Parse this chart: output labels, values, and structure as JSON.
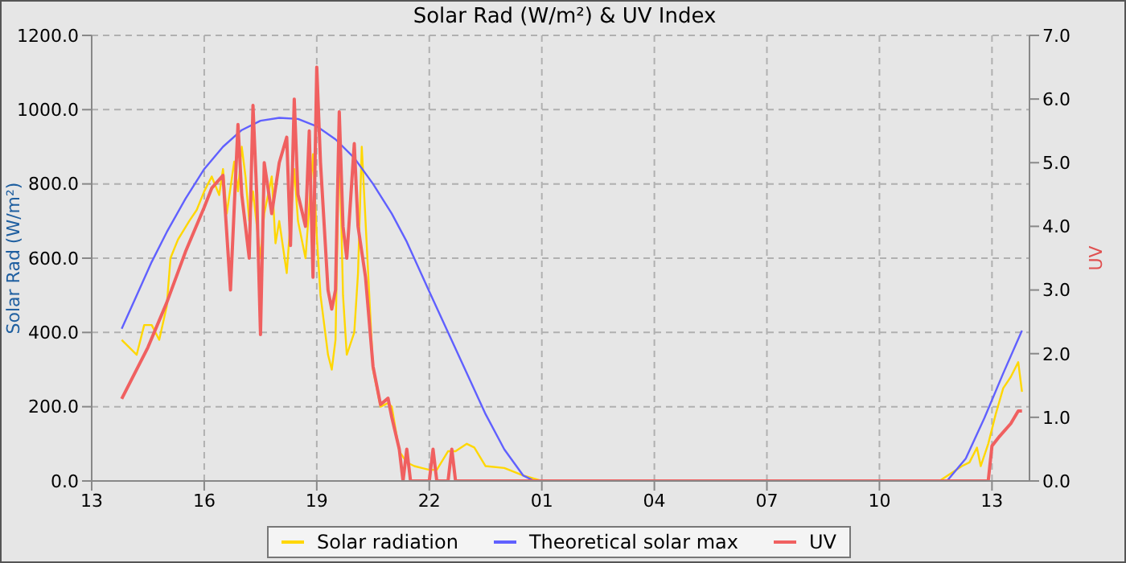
{
  "chart_data": {
    "type": "line",
    "title": "Solar Rad (W/m²) &  UV Index",
    "ylabel": "Solar Rad (W/m²)",
    "y2label": "UV",
    "xlim": [
      "--01-01T13:00",
      "--01-02T14:00"
    ],
    "xticks": [
      {
        "value": "--01-01T13:00",
        "label": "13"
      },
      {
        "value": "--01-01T16:00",
        "label": "16"
      },
      {
        "value": "--01-01T19:00",
        "label": "19"
      },
      {
        "value": "--01-01T22:00",
        "label": "22"
      },
      {
        "value": "--01-02T01:00",
        "label": "01"
      },
      {
        "value": "--01-02T04:00",
        "label": "04"
      },
      {
        "value": "--01-02T07:00",
        "label": "07"
      },
      {
        "value": "--01-02T10:00",
        "label": "10"
      },
      {
        "value": "--01-02T13:00",
        "label": "13"
      }
    ],
    "ylim": [
      0,
      1200
    ],
    "yticks": [
      {
        "value": 0,
        "label": "0.0"
      },
      {
        "value": 200,
        "label": "200.0"
      },
      {
        "value": 400,
        "label": "400.0"
      },
      {
        "value": 600,
        "label": "600.0"
      },
      {
        "value": 800,
        "label": "800.0"
      },
      {
        "value": 1000,
        "label": "1000.0"
      },
      {
        "value": 1200,
        "label": "1200.0"
      }
    ],
    "y2lim": [
      0,
      7
    ],
    "y2ticks": [
      {
        "value": 0,
        "label": "0.0"
      },
      {
        "value": 1,
        "label": "1.0"
      },
      {
        "value": 2,
        "label": "2.0"
      },
      {
        "value": 3,
        "label": "3.0"
      },
      {
        "value": 4,
        "label": "4.0"
      },
      {
        "value": 5,
        "label": "5.0"
      },
      {
        "value": 6,
        "label": "6.0"
      },
      {
        "value": 7,
        "label": "7.0"
      }
    ],
    "grid": true,
    "legend": "bottom",
    "series": [
      {
        "name": "Solar radiation",
        "color": "#ffd700",
        "x": [
          "--01-01T13:48",
          "--01-01T14:00",
          "--01-01T14:12",
          "--01-01T14:24",
          "--01-01T14:36",
          "--01-01T14:48",
          "--01-01T15:00",
          "--01-01T15:06",
          "--01-01T15:18",
          "--01-01T15:36",
          "--01-01T15:48",
          "--01-01T16:00",
          "--01-01T16:12",
          "--01-01T16:24",
          "--01-01T16:30",
          "--01-01T16:36",
          "--01-01T16:48",
          "--01-01T16:54",
          "--01-01T17:00",
          "--01-01T17:06",
          "--01-01T17:12",
          "--01-01T17:18",
          "--01-01T17:30",
          "--01-01T17:36",
          "--01-01T17:48",
          "--01-01T17:54",
          "--01-01T18:00",
          "--01-01T18:12",
          "--01-01T18:24",
          "--01-01T18:30",
          "--01-01T18:42",
          "--01-01T18:54",
          "--01-01T19:00",
          "--01-01T19:06",
          "--01-01T19:18",
          "--01-01T19:24",
          "--01-01T19:30",
          "--01-01T19:36",
          "--01-01T19:42",
          "--01-01T19:48",
          "--01-01T20:00",
          "--01-01T20:06",
          "--01-01T20:12",
          "--01-01T20:18",
          "--01-01T20:30",
          "--01-01T20:42",
          "--01-01T20:54",
          "--01-01T21:00",
          "--01-01T21:12",
          "--01-01T21:24",
          "--01-01T21:36",
          "--01-01T21:48",
          "--01-01T22:00",
          "--01-01T22:12",
          "--01-01T22:30",
          "--01-01T22:42",
          "--01-01T23:00",
          "--01-01T23:12",
          "--01-01T23:30",
          "--01-02T00:00",
          "--01-02T00:30",
          "--01-02T01:00",
          "--01-02T11:36",
          "--01-02T11:54",
          "--01-02T12:12",
          "--01-02T12:24",
          "--01-02T12:36",
          "--01-02T12:42",
          "--01-02T12:54",
          "--01-02T13:06",
          "--01-02T13:18",
          "--01-02T13:30",
          "--01-02T13:42",
          "--01-02T13:48"
        ],
        "values": [
          380,
          360,
          340,
          420,
          420,
          380,
          470,
          600,
          650,
          700,
          730,
          780,
          820,
          770,
          840,
          720,
          860,
          780,
          900,
          820,
          700,
          780,
          600,
          720,
          820,
          640,
          700,
          560,
          840,
          700,
          600,
          880,
          660,
          500,
          340,
          300,
          380,
          930,
          500,
          340,
          400,
          560,
          900,
          700,
          300,
          200,
          210,
          200,
          80,
          50,
          40,
          35,
          30,
          30,
          80,
          80,
          100,
          90,
          40,
          35,
          15,
          0,
          0,
          20,
          40,
          50,
          90,
          40,
          100,
          180,
          250,
          280,
          320,
          240
        ]
      },
      {
        "name": "Theoretical solar max",
        "color": "#6060ff",
        "x": [
          "--01-01T13:48",
          "--01-01T14:12",
          "--01-01T14:36",
          "--01-01T15:00",
          "--01-01T15:30",
          "--01-01T16:00",
          "--01-01T16:30",
          "--01-01T17:00",
          "--01-01T17:30",
          "--01-01T18:00",
          "--01-01T18:30",
          "--01-01T19:00",
          "--01-01T19:30",
          "--01-01T20:00",
          "--01-01T20:30",
          "--01-01T21:00",
          "--01-01T21:24",
          "--01-01T22:00",
          "--01-01T22:30",
          "--01-01T23:00",
          "--01-01T23:30",
          "--01-02T00:00",
          "--01-02T00:30",
          "--01-02T00:48",
          "--01-02T11:48",
          "--01-02T12:18",
          "--01-02T12:48",
          "--01-02T13:18",
          "--01-02T13:48"
        ],
        "values": [
          410,
          500,
          590,
          670,
          760,
          840,
          900,
          945,
          970,
          978,
          975,
          955,
          920,
          870,
          800,
          720,
          644,
          510,
          400,
          290,
          180,
          85,
          15,
          0,
          0,
          60,
          170,
          290,
          405
        ]
      },
      {
        "name": "UV",
        "color": "#f06060",
        "axis": "y2",
        "x": [
          "--01-01T13:48",
          "--01-01T14:30",
          "--01-01T15:00",
          "--01-01T15:30",
          "--01-01T16:00",
          "--01-01T16:12",
          "--01-01T16:30",
          "--01-01T16:42",
          "--01-01T16:54",
          "--01-01T17:00",
          "--01-01T17:12",
          "--01-01T17:18",
          "--01-01T17:24",
          "--01-01T17:30",
          "--01-01T17:36",
          "--01-01T17:48",
          "--01-01T18:00",
          "--01-01T18:12",
          "--01-01T18:18",
          "--01-01T18:24",
          "--01-01T18:30",
          "--01-01T18:42",
          "--01-01T18:48",
          "--01-01T18:54",
          "--01-01T19:00",
          "--01-01T19:06",
          "--01-01T19:18",
          "--01-01T19:24",
          "--01-01T19:30",
          "--01-01T19:36",
          "--01-01T19:42",
          "--01-01T19:48",
          "--01-01T20:00",
          "--01-01T20:06",
          "--01-01T20:18",
          "--01-01T20:30",
          "--01-01T20:42",
          "--01-01T20:54",
          "--01-01T21:00",
          "--01-01T21:12",
          "--01-01T21:18",
          "--01-01T21:24",
          "--01-01T21:30",
          "--01-01T22:00",
          "--01-01T22:06",
          "--01-01T22:12",
          "--01-01T22:30",
          "--01-01T22:36",
          "--01-01T22:42",
          "--01-02T12:54",
          "--01-02T13:00",
          "--01-02T13:12",
          "--01-02T13:30",
          "--01-02T13:42",
          "--01-02T13:48"
        ],
        "values": [
          1.29,
          2.1,
          2.8,
          3.6,
          4.3,
          4.6,
          4.8,
          3.0,
          5.6,
          4.5,
          3.5,
          5.9,
          4.5,
          2.3,
          5.0,
          4.2,
          5.0,
          5.4,
          3.7,
          6.0,
          4.5,
          4.0,
          5.5,
          3.2,
          6.5,
          5.0,
          3.0,
          2.7,
          3.0,
          5.8,
          4.0,
          3.5,
          5.3,
          4.0,
          3.2,
          1.8,
          1.2,
          1.3,
          1.0,
          0.5,
          0,
          0.5,
          0,
          0,
          0.5,
          0,
          0,
          0.5,
          0,
          0,
          0.55,
          0.7,
          0.9,
          1.1,
          1.1
        ]
      }
    ]
  }
}
